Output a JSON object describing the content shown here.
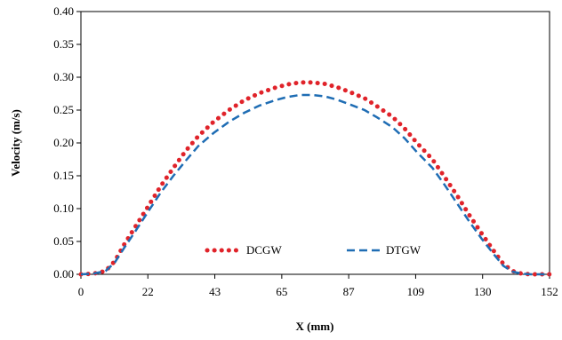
{
  "chart_data": {
    "type": "line",
    "xlabel": "X (mm)",
    "ylabel": "Velocity (m/s)",
    "xlim": [
      0,
      152
    ],
    "ylim": [
      0,
      0.4
    ],
    "x_ticks": [
      "0",
      "22",
      "43",
      "65",
      "87",
      "109",
      "130",
      "152"
    ],
    "y_ticks": [
      "0.00",
      "0.05",
      "0.10",
      "0.15",
      "0.20",
      "0.25",
      "0.30",
      "0.35",
      "0.40"
    ],
    "grid": false,
    "legend_position": "bottom-center inside",
    "series": [
      {
        "name": "DCGW",
        "style": "dotted",
        "color": "#e0232a",
        "x": [
          0,
          4,
          8,
          11,
          14,
          18,
          22,
          26,
          30,
          34,
          38,
          43,
          48,
          53,
          58,
          63,
          67,
          71,
          75,
          79,
          83,
          87,
          92,
          96,
          101,
          105,
          109,
          114,
          118,
          122,
          126,
          130,
          134,
          137,
          140,
          143,
          146,
          149,
          152
        ],
        "y": [
          0,
          0.001,
          0.005,
          0.02,
          0.045,
          0.075,
          0.105,
          0.135,
          0.162,
          0.188,
          0.21,
          0.232,
          0.25,
          0.265,
          0.276,
          0.284,
          0.289,
          0.292,
          0.292,
          0.29,
          0.285,
          0.278,
          0.268,
          0.256,
          0.24,
          0.222,
          0.2,
          0.175,
          0.148,
          0.12,
          0.09,
          0.062,
          0.035,
          0.016,
          0.005,
          0.001,
          0,
          0,
          0
        ]
      },
      {
        "name": "DTGW",
        "style": "dashed",
        "color": "#1f6db4",
        "x": [
          0,
          4,
          8,
          11,
          14,
          18,
          22,
          26,
          30,
          34,
          38,
          43,
          48,
          53,
          58,
          63,
          67,
          71,
          75,
          79,
          83,
          87,
          92,
          96,
          101,
          105,
          109,
          114,
          118,
          122,
          126,
          130,
          134,
          137,
          140,
          143,
          146,
          149,
          152
        ],
        "y": [
          0,
          0.001,
          0.005,
          0.018,
          0.04,
          0.068,
          0.097,
          0.125,
          0.15,
          0.173,
          0.195,
          0.215,
          0.232,
          0.246,
          0.257,
          0.265,
          0.27,
          0.273,
          0.273,
          0.271,
          0.266,
          0.259,
          0.25,
          0.239,
          0.224,
          0.207,
          0.186,
          0.162,
          0.136,
          0.108,
          0.08,
          0.054,
          0.03,
          0.013,
          0.004,
          0.001,
          0,
          0,
          0
        ]
      }
    ]
  }
}
